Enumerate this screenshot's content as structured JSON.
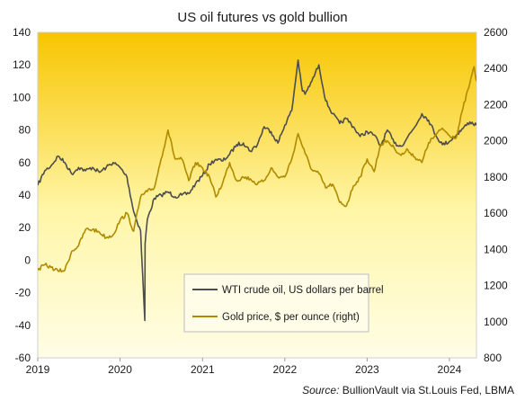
{
  "chart_data": {
    "type": "line",
    "title": "US oil futures vs gold bullion",
    "source_label": "Source:",
    "source_text": "BullionVault via St.Louis Fed, LBMA",
    "x_ticks": [
      "2019",
      "2020",
      "2021",
      "2022",
      "2023",
      "2024"
    ],
    "xlim": [
      "2019-01-01",
      "2024-04-30"
    ],
    "y_left": {
      "ticks": [
        140,
        120,
        100,
        80,
        60,
        40,
        20,
        0,
        -20,
        -40,
        -60
      ],
      "ylim": [
        -60,
        140
      ]
    },
    "y_right": {
      "ticks": [
        2600,
        2400,
        2200,
        2000,
        1800,
        1600,
        1400,
        1200,
        1000,
        800
      ],
      "ylim": [
        800,
        2600
      ]
    },
    "grid": false,
    "legend_position": "bottom-center",
    "background_gradient": [
      "#F7C500",
      "#FFF6A8",
      "#FFFDE6"
    ],
    "series": [
      {
        "name": "WTI crude oil, US dollars per barrel",
        "axis": "left",
        "color": "#4D4D4D",
        "points": [
          [
            "2019-01-01",
            46
          ],
          [
            "2019-02-01",
            55
          ],
          [
            "2019-03-01",
            58
          ],
          [
            "2019-04-01",
            64
          ],
          [
            "2019-05-01",
            60
          ],
          [
            "2019-06-01",
            53
          ],
          [
            "2019-07-01",
            57
          ],
          [
            "2019-08-01",
            55
          ],
          [
            "2019-09-01",
            57
          ],
          [
            "2019-10-01",
            54
          ],
          [
            "2019-11-01",
            57
          ],
          [
            "2019-12-01",
            60
          ],
          [
            "2020-01-01",
            57
          ],
          [
            "2020-02-01",
            51
          ],
          [
            "2020-03-01",
            30
          ],
          [
            "2020-04-01",
            18
          ],
          [
            "2020-04-20",
            -37
          ],
          [
            "2020-04-21",
            10
          ],
          [
            "2020-05-01",
            25
          ],
          [
            "2020-06-01",
            38
          ],
          [
            "2020-07-01",
            40
          ],
          [
            "2020-08-01",
            42
          ],
          [
            "2020-09-01",
            39
          ],
          [
            "2020-10-01",
            40
          ],
          [
            "2020-11-01",
            41
          ],
          [
            "2020-12-01",
            47
          ],
          [
            "2021-01-01",
            52
          ],
          [
            "2021-02-01",
            59
          ],
          [
            "2021-03-01",
            62
          ],
          [
            "2021-04-01",
            61
          ],
          [
            "2021-05-01",
            65
          ],
          [
            "2021-06-01",
            71
          ],
          [
            "2021-07-01",
            72
          ],
          [
            "2021-08-01",
            67
          ],
          [
            "2021-09-01",
            71
          ],
          [
            "2021-10-01",
            82
          ],
          [
            "2021-11-01",
            79
          ],
          [
            "2021-12-01",
            72
          ],
          [
            "2022-01-01",
            83
          ],
          [
            "2022-02-01",
            92
          ],
          [
            "2022-03-01",
            123
          ],
          [
            "2022-03-20",
            104
          ],
          [
            "2022-04-01",
            102
          ],
          [
            "2022-05-01",
            110
          ],
          [
            "2022-06-01",
            120
          ],
          [
            "2022-07-01",
            98
          ],
          [
            "2022-08-01",
            90
          ],
          [
            "2022-09-01",
            84
          ],
          [
            "2022-10-01",
            87
          ],
          [
            "2022-11-01",
            82
          ],
          [
            "2022-12-01",
            76
          ],
          [
            "2023-01-01",
            79
          ],
          [
            "2023-02-01",
            77
          ],
          [
            "2023-03-01",
            70
          ],
          [
            "2023-04-01",
            80
          ],
          [
            "2023-05-01",
            72
          ],
          [
            "2023-06-01",
            70
          ],
          [
            "2023-07-01",
            76
          ],
          [
            "2023-08-01",
            82
          ],
          [
            "2023-09-01",
            90
          ],
          [
            "2023-10-01",
            86
          ],
          [
            "2023-11-01",
            77
          ],
          [
            "2023-12-01",
            71
          ],
          [
            "2024-01-01",
            73
          ],
          [
            "2024-02-01",
            77
          ],
          [
            "2024-03-01",
            81
          ],
          [
            "2024-04-01",
            85
          ],
          [
            "2024-04-30",
            83
          ]
        ]
      },
      {
        "name": "Gold price, $ per ounce (right)",
        "axis": "right",
        "color": "#B08A00",
        "points": [
          [
            "2019-01-01",
            1285
          ],
          [
            "2019-02-01",
            1315
          ],
          [
            "2019-03-01",
            1300
          ],
          [
            "2019-04-01",
            1280
          ],
          [
            "2019-05-01",
            1285
          ],
          [
            "2019-06-01",
            1390
          ],
          [
            "2019-07-01",
            1420
          ],
          [
            "2019-08-01",
            1510
          ],
          [
            "2019-09-01",
            1510
          ],
          [
            "2019-10-01",
            1495
          ],
          [
            "2019-11-01",
            1465
          ],
          [
            "2019-12-01",
            1480
          ],
          [
            "2020-01-01",
            1560
          ],
          [
            "2020-02-01",
            1600
          ],
          [
            "2020-03-01",
            1500
          ],
          [
            "2020-04-01",
            1690
          ],
          [
            "2020-05-01",
            1720
          ],
          [
            "2020-06-01",
            1740
          ],
          [
            "2020-07-01",
            1900
          ],
          [
            "2020-08-01",
            2060
          ],
          [
            "2020-09-01",
            1900
          ],
          [
            "2020-10-01",
            1900
          ],
          [
            "2020-11-01",
            1780
          ],
          [
            "2020-12-01",
            1880
          ],
          [
            "2021-01-01",
            1850
          ],
          [
            "2021-02-01",
            1800
          ],
          [
            "2021-03-01",
            1690
          ],
          [
            "2021-04-01",
            1770
          ],
          [
            "2021-05-01",
            1880
          ],
          [
            "2021-06-01",
            1780
          ],
          [
            "2021-07-01",
            1800
          ],
          [
            "2021-08-01",
            1790
          ],
          [
            "2021-09-01",
            1760
          ],
          [
            "2021-10-01",
            1780
          ],
          [
            "2021-11-01",
            1850
          ],
          [
            "2021-12-01",
            1800
          ],
          [
            "2022-01-01",
            1800
          ],
          [
            "2022-02-01",
            1900
          ],
          [
            "2022-03-01",
            2040
          ],
          [
            "2022-04-01",
            1930
          ],
          [
            "2022-05-01",
            1840
          ],
          [
            "2022-06-01",
            1820
          ],
          [
            "2022-07-01",
            1740
          ],
          [
            "2022-08-01",
            1760
          ],
          [
            "2022-09-01",
            1660
          ],
          [
            "2022-10-01",
            1640
          ],
          [
            "2022-11-01",
            1750
          ],
          [
            "2022-12-01",
            1800
          ],
          [
            "2023-01-01",
            1900
          ],
          [
            "2023-02-01",
            1830
          ],
          [
            "2023-03-01",
            1980
          ],
          [
            "2023-04-01",
            2000
          ],
          [
            "2023-05-01",
            1960
          ],
          [
            "2023-06-01",
            1920
          ],
          [
            "2023-07-01",
            1950
          ],
          [
            "2023-08-01",
            1910
          ],
          [
            "2023-09-01",
            1880
          ],
          [
            "2023-10-01",
            1990
          ],
          [
            "2023-11-01",
            2030
          ],
          [
            "2023-12-01",
            2070
          ],
          [
            "2024-01-01",
            2030
          ],
          [
            "2024-02-01",
            2020
          ],
          [
            "2024-03-01",
            2180
          ],
          [
            "2024-04-01",
            2320
          ],
          [
            "2024-04-20",
            2410
          ],
          [
            "2024-04-30",
            2330
          ]
        ]
      }
    ]
  }
}
